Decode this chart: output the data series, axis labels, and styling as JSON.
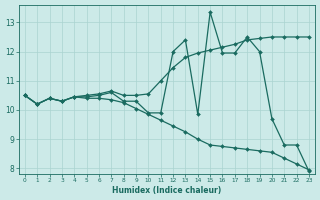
{
  "xlabel": "Humidex (Indice chaleur)",
  "bg_color": "#cceae8",
  "line_color": "#1a6b60",
  "grid_color": "#aad4d0",
  "xlim": [
    -0.5,
    23.5
  ],
  "ylim": [
    7.8,
    13.6
  ],
  "yticks": [
    8,
    9,
    10,
    11,
    12,
    13
  ],
  "xticks": [
    0,
    1,
    2,
    3,
    4,
    5,
    6,
    7,
    8,
    9,
    10,
    11,
    12,
    13,
    14,
    15,
    16,
    17,
    18,
    19,
    20,
    21,
    22,
    23
  ],
  "line1_x": [
    0,
    1,
    2,
    3,
    4,
    5,
    6,
    7,
    8,
    9,
    10,
    11,
    12,
    13,
    14,
    15,
    16,
    17,
    18,
    19,
    20,
    21,
    22,
    23
  ],
  "line1_y": [
    10.5,
    10.2,
    10.4,
    10.3,
    10.45,
    10.45,
    10.5,
    10.6,
    10.3,
    10.3,
    9.9,
    9.9,
    12.0,
    12.4,
    9.85,
    13.35,
    11.95,
    11.95,
    12.5,
    12.0,
    9.7,
    8.8,
    8.8,
    7.9
  ],
  "line2_x": [
    0,
    1,
    2,
    3,
    4,
    5,
    6,
    7,
    8,
    9,
    10,
    11,
    12,
    13,
    14,
    15,
    16,
    17,
    18,
    19,
    20,
    21,
    22,
    23
  ],
  "line2_y": [
    10.5,
    10.2,
    10.4,
    10.3,
    10.45,
    10.5,
    10.55,
    10.65,
    10.5,
    10.5,
    10.55,
    11.0,
    11.45,
    11.8,
    11.95,
    12.05,
    12.15,
    12.25,
    12.4,
    12.45,
    12.5,
    12.5,
    12.5,
    12.5
  ],
  "line3_x": [
    0,
    1,
    2,
    3,
    4,
    5,
    6,
    7,
    8,
    9,
    10,
    11,
    12,
    13,
    14,
    15,
    16,
    17,
    18,
    19,
    20,
    21,
    22,
    23
  ],
  "line3_y": [
    10.5,
    10.2,
    10.4,
    10.3,
    10.45,
    10.4,
    10.4,
    10.35,
    10.25,
    10.05,
    9.85,
    9.65,
    9.45,
    9.25,
    9.0,
    8.8,
    8.75,
    8.7,
    8.65,
    8.6,
    8.55,
    8.35,
    8.15,
    7.95
  ]
}
